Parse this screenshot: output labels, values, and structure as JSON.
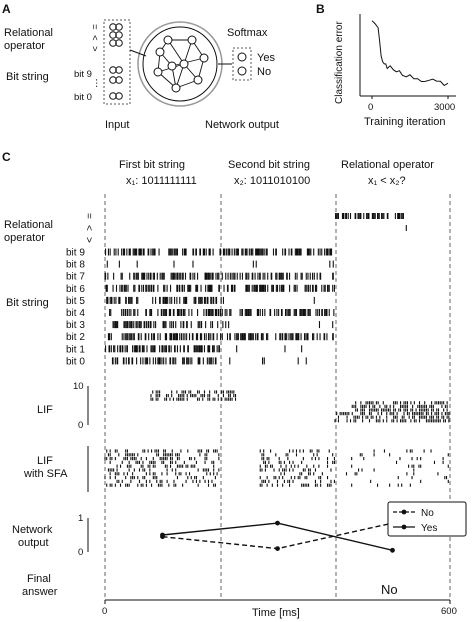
{
  "panel_a": {
    "letter": "A",
    "relational_operator_label": "Relational\noperator",
    "operator_symbols": [
      "=",
      "<",
      ">"
    ],
    "bit_string_label": "Bit string",
    "bit_labels": [
      "bit 9",
      "bit 0"
    ],
    "input_label": "Input",
    "softmax_label": "Softmax",
    "yes_label": "Yes",
    "no_label": "No",
    "network_output_label": "Network output"
  },
  "panel_b": {
    "letter": "B",
    "chart_data": {
      "type": "line",
      "xlabel": "Training iteration",
      "ylabel": "Classification error",
      "xticks": [
        "0",
        "3000"
      ],
      "xlim": [
        0,
        3000
      ],
      "ylim": [
        0,
        0.6
      ],
      "x": [
        0,
        120,
        240,
        300,
        360,
        420,
        480,
        540,
        600,
        720,
        840,
        960,
        1080,
        1200,
        1350,
        1500,
        1650,
        1800,
        1950,
        2100,
        2250,
        2400,
        2550,
        2700,
        2850,
        3000
      ],
      "y": [
        0.55,
        0.53,
        0.5,
        0.4,
        0.3,
        0.25,
        0.22,
        0.23,
        0.2,
        0.21,
        0.18,
        0.19,
        0.17,
        0.16,
        0.15,
        0.14,
        0.14,
        0.13,
        0.12,
        0.12,
        0.11,
        0.11,
        0.1,
        0.1,
        0.09,
        0.09
      ]
    }
  },
  "panel_c": {
    "letter": "C",
    "headers": [
      {
        "title": "First bit string",
        "sub": "x₁: 1011111111"
      },
      {
        "title": "Second bit string",
        "sub": "x₂: 1011010100"
      },
      {
        "title": "Relational operator",
        "sub": "x₁ < x₂?"
      }
    ],
    "relational_operator_label": "Relational\noperator",
    "operator_rows": [
      "=",
      "<",
      ">"
    ],
    "bit_string_label": "Bit string",
    "bit_rows": [
      "bit 9",
      "bit 8",
      "bit 7",
      "bit 6",
      "bit 5",
      "bit 4",
      "bit 3",
      "bit 2",
      "bit 1",
      "bit 0"
    ],
    "lif_label": "LIF",
    "lif_yticks": [
      "10",
      "0"
    ],
    "lif_sfa_label": "LIF\nwith SFA",
    "network_output_label": "Network\noutput",
    "network_output_yticks": [
      "1",
      "0"
    ],
    "legend": [
      "No",
      "Yes"
    ],
    "final_answer_label": "Final\nanswer",
    "final_answer_value": "No",
    "time_ticks": [
      "0",
      "600"
    ],
    "xlabel": "Time [ms]",
    "chart_data": {
      "type": "line",
      "xlabel": "Time [ms]",
      "xlim": [
        0,
        600
      ],
      "ylim": [
        0,
        1
      ],
      "series": [
        {
          "name": "No",
          "x": [
            100,
            300,
            500
          ],
          "y": [
            0.45,
            0.1,
            0.85
          ]
        },
        {
          "name": "Yes",
          "x": [
            100,
            300,
            500
          ],
          "y": [
            0.5,
            0.85,
            0.05
          ]
        }
      ]
    },
    "colors": {
      "ink": "#111111",
      "dash": "#666666"
    }
  }
}
